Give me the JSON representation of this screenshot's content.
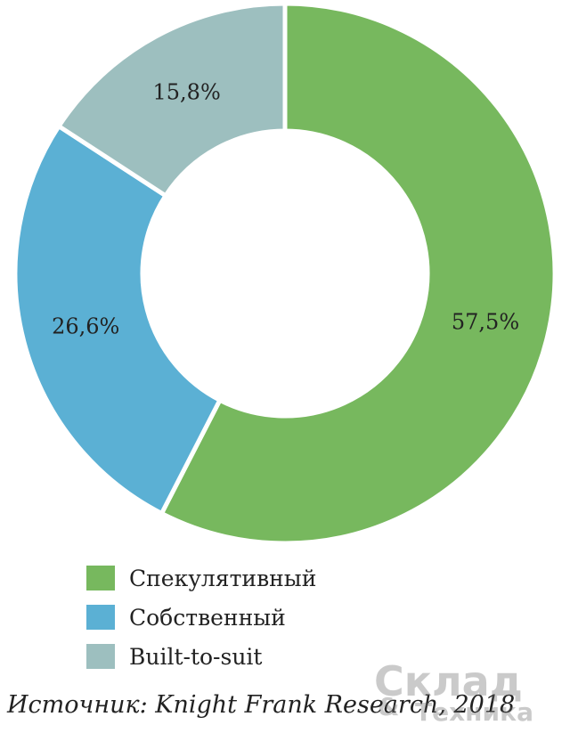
{
  "chart_data": {
    "type": "pie",
    "donut": true,
    "categories": [
      "Спекулятивный",
      "Собственный",
      "Built-to-suit"
    ],
    "values": [
      57.5,
      26.6,
      15.8
    ],
    "labels": [
      "57,5%",
      "26,6%",
      "15,8%"
    ],
    "colors": [
      "#77b85e",
      "#5bb0d4",
      "#9dbfbf"
    ],
    "legend_position": "bottom"
  },
  "legend": {
    "items": [
      {
        "label": "Спекулятивный",
        "color": "#77b85e"
      },
      {
        "label": "Собственный",
        "color": "#5bb0d4"
      },
      {
        "label": "Built-to-suit",
        "color": "#9dbfbf"
      }
    ]
  },
  "source": "Источник: Knight Frank Research, 2018",
  "watermark": {
    "line1": "Склад",
    "line2": "Техника",
    "ampersand": "&"
  }
}
